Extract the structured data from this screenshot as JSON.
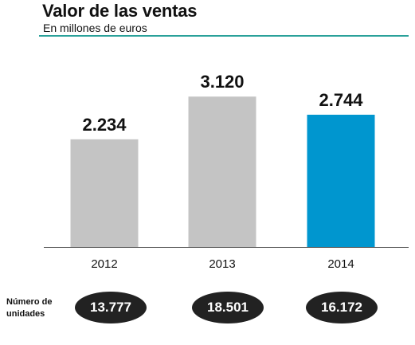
{
  "header": {
    "title": "Valor de las ventas",
    "subtitle": "En millones de euros"
  },
  "colors": {
    "bar_default": "#c4c4c4",
    "bar_highlight": "#0096cf",
    "rule": "#2aa19a"
  },
  "chart_data": {
    "type": "bar",
    "title": "Valor de las ventas",
    "subtitle": "En millones de euros",
    "categories": [
      "2012",
      "2013",
      "2014"
    ],
    "values": [
      2234,
      3120,
      2744
    ],
    "value_labels": [
      "2.234",
      "3.120",
      "2.744"
    ],
    "highlight_index": 2,
    "grid": false,
    "ylim": [
      0,
      3400
    ]
  },
  "units": {
    "label_line1": "Número de",
    "label_line2": "unidades",
    "values": [
      "13.777",
      "18.501",
      "16.172"
    ]
  }
}
